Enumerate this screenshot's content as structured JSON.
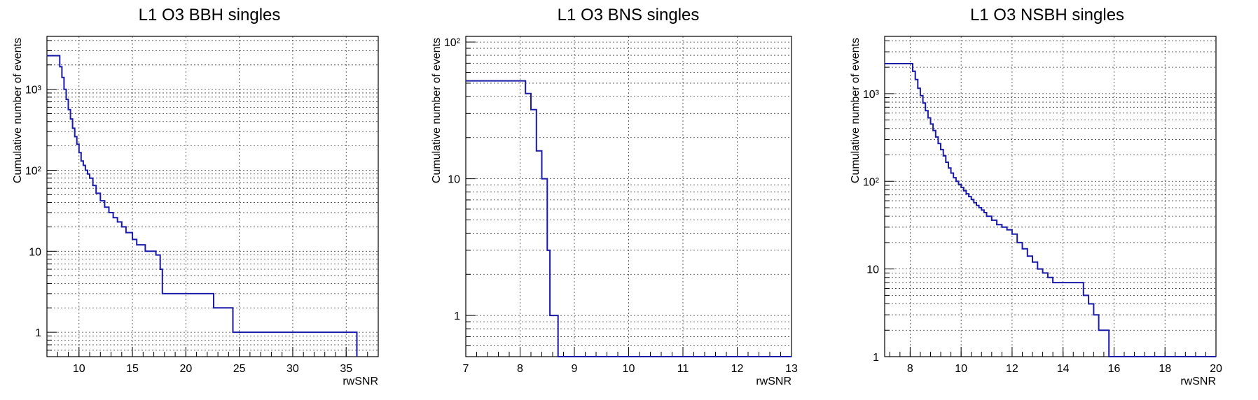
{
  "chart_data": [
    {
      "type": "line",
      "title": "L1 O3 BBH singles",
      "xlabel": "rwSNR",
      "ylabel": "Cumulative number of events",
      "xlim": [
        7,
        38
      ],
      "ylim": [
        0.5,
        4500
      ],
      "log_y": true,
      "grid": true,
      "x_ticks": [
        10,
        15,
        20,
        25,
        30,
        35
      ],
      "x_tick_labels": [
        "10",
        "15",
        "20",
        "25",
        "30",
        "35"
      ],
      "y_ticks": [
        1,
        10,
        100,
        1000
      ],
      "y_tick_labels": [
        "1",
        "10",
        "10²",
        "10³"
      ],
      "series": [
        {
          "x": [
            7.0,
            8.0,
            8.2,
            8.4,
            8.6,
            8.8,
            9.0,
            9.2,
            9.4,
            9.6,
            9.8,
            10.0,
            10.2,
            10.4,
            10.6,
            10.8,
            11.0,
            11.3,
            11.6,
            12.0,
            12.4,
            12.8,
            13.2,
            13.6,
            14.0,
            14.4,
            15.0,
            15.4,
            16.2,
            17.2,
            17.6,
            17.8,
            22.6,
            24.4,
            36.0
          ],
          "y": [
            2600,
            2600,
            1900,
            1400,
            1000,
            750,
            560,
            430,
            330,
            260,
            210,
            165,
            130,
            115,
            100,
            90,
            80,
            65,
            52,
            42,
            35,
            30,
            26,
            23,
            20,
            17,
            14,
            12,
            10,
            9,
            6,
            3,
            2,
            1,
            0.5
          ]
        }
      ]
    },
    {
      "type": "line",
      "title": "L1 O3 BNS singles",
      "xlabel": "rwSNR",
      "ylabel": "Cumulative number of events",
      "xlim": [
        7,
        13
      ],
      "ylim": [
        0.5,
        110
      ],
      "log_y": true,
      "grid": true,
      "x_ticks": [
        7,
        8,
        9,
        10,
        11,
        12,
        13
      ],
      "x_tick_labels": [
        "7",
        "8",
        "9",
        "10",
        "11",
        "12",
        "13"
      ],
      "y_ticks": [
        1,
        10,
        100
      ],
      "y_tick_labels": [
        "1",
        "10",
        "10²"
      ],
      "series": [
        {
          "x": [
            7.0,
            8.1,
            8.2,
            8.3,
            8.4,
            8.5,
            8.55,
            8.7,
            13.0
          ],
          "y": [
            52,
            42,
            32,
            16,
            10,
            3,
            1,
            0.5,
            0.5
          ]
        }
      ]
    },
    {
      "type": "line",
      "title": "L1 O3 NSBH singles",
      "xlabel": "rwSNR",
      "ylabel": "Cumulative number of events",
      "xlim": [
        7,
        20
      ],
      "ylim": [
        1,
        4500
      ],
      "log_y": true,
      "grid": true,
      "x_ticks": [
        8,
        10,
        12,
        14,
        16,
        18,
        20
      ],
      "x_tick_labels": [
        "8",
        "10",
        "12",
        "14",
        "16",
        "18",
        "20"
      ],
      "y_ticks": [
        1,
        10,
        100,
        1000
      ],
      "y_tick_labels": [
        "1",
        "10",
        "10²",
        "10³"
      ],
      "series": [
        {
          "x": [
            7.0,
            8.0,
            8.1,
            8.2,
            8.3,
            8.4,
            8.5,
            8.6,
            8.7,
            8.8,
            8.9,
            9.0,
            9.1,
            9.2,
            9.3,
            9.4,
            9.5,
            9.6,
            9.7,
            9.8,
            9.9,
            10.0,
            10.1,
            10.2,
            10.3,
            10.4,
            10.5,
            10.6,
            10.7,
            10.8,
            10.9,
            11.0,
            11.2,
            11.4,
            11.6,
            11.8,
            12.0,
            12.2,
            12.4,
            12.6,
            12.8,
            13.0,
            13.2,
            13.4,
            13.6,
            14.0,
            14.8,
            15.0,
            15.2,
            15.4,
            15.6,
            15.8,
            20.0
          ],
          "y": [
            2200,
            2200,
            1800,
            1450,
            1150,
            950,
            780,
            640,
            530,
            450,
            380,
            320,
            270,
            230,
            195,
            165,
            142,
            124,
            110,
            100,
            92,
            85,
            78,
            72,
            67,
            62,
            57,
            53,
            50,
            47,
            44,
            40,
            36,
            32,
            30,
            28,
            25,
            20,
            17,
            14,
            12,
            10,
            9,
            8,
            7,
            7,
            5,
            4,
            3,
            2,
            2,
            1,
            1
          ]
        }
      ]
    }
  ]
}
